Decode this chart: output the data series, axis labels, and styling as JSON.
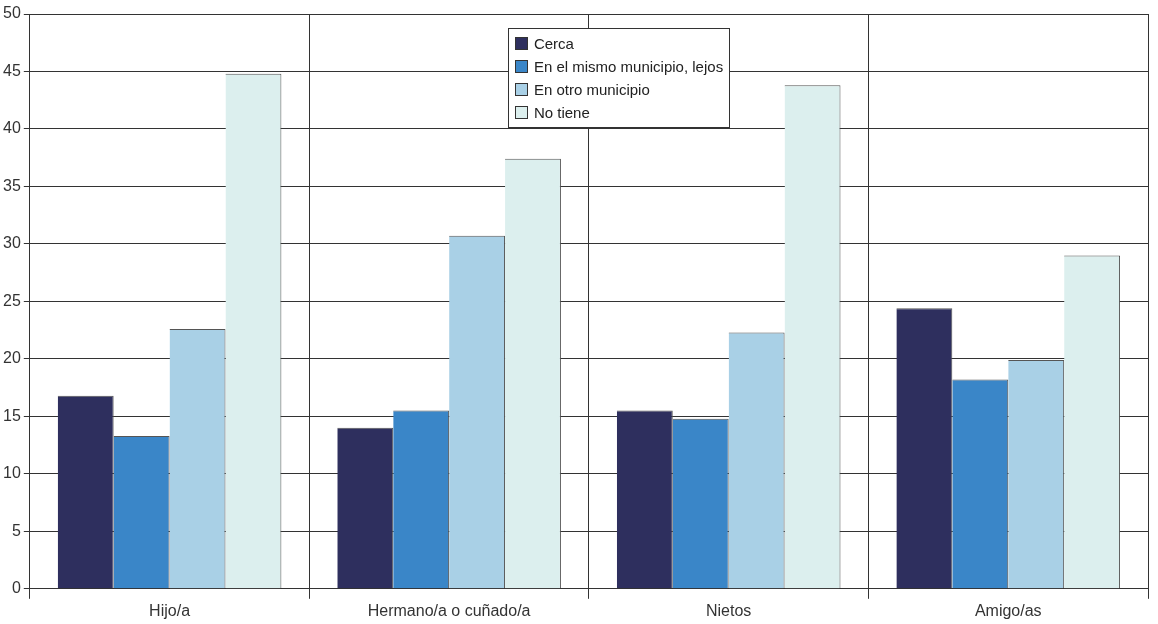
{
  "chart_data": {
    "type": "bar",
    "categories": [
      "Hijo/a",
      "Hermano/a o cuñado/a",
      "Nietos",
      "Amigo/as"
    ],
    "series": [
      {
        "name": "Cerca",
        "color": "#2e2f5e",
        "values": [
          16.8,
          14.0,
          15.5,
          24.4
        ]
      },
      {
        "name": "En el mismo municipio, lejos",
        "color": "#3a86c8",
        "values": [
          13.3,
          15.5,
          14.8,
          18.2
        ]
      },
      {
        "name": "En otro municipio",
        "color": "#a9d0e6",
        "values": [
          22.6,
          30.7,
          22.3,
          19.9
        ]
      },
      {
        "name": "No tiene",
        "color": "#dcefee",
        "values": [
          44.8,
          37.4,
          43.8,
          29.0
        ]
      }
    ],
    "ylim": [
      0,
      50
    ],
    "yticks": [
      0,
      5,
      10,
      15,
      20,
      25,
      30,
      35,
      40,
      45,
      50
    ],
    "grid": true,
    "legend": "top"
  }
}
